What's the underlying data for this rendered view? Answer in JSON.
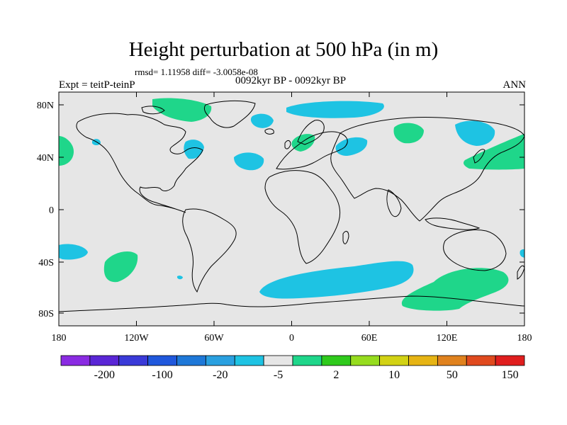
{
  "title": "Height perturbation at 500 hPa (in m)",
  "stats": "rmsd= 1.11958 diff= -3.0058e-08",
  "subtitle": "0092kyr BP - 0092kyr BP",
  "left_label": "Expt = teitP-teinP",
  "right_label": "ANN",
  "lat_ticks": [
    "80N",
    "40N",
    "0",
    "40S",
    "80S"
  ],
  "lon_ticks": [
    "180",
    "120W",
    "60W",
    "0",
    "60E",
    "120E",
    "180"
  ],
  "colorbar": {
    "labels": [
      "-200",
      "-100",
      "-20",
      "-5",
      "2",
      "10",
      "50",
      "150"
    ],
    "colors": [
      "#8a2be2",
      "#5a26d6",
      "#3a3ad8",
      "#2058dc",
      "#1e78d8",
      "#2aa0e0",
      "#1ec3e3",
      "#e6e6e6",
      "#1fd68a",
      "#2fca1c",
      "#96dc1e",
      "#d2d214",
      "#e6b414",
      "#e0821e",
      "#e04a1e",
      "#e01e1e"
    ]
  },
  "map": {
    "background": "#e6e6e6",
    "anomalies": [
      {
        "label": "greenland",
        "color": "#1fd68a"
      },
      {
        "label": "north-atlantic-negative",
        "color": "#1ec3e3"
      },
      {
        "label": "europe-positive",
        "color": "#1fd68a"
      },
      {
        "label": "siberia-positive",
        "color": "#1fd68a"
      },
      {
        "label": "southern-ocean-negative",
        "color": "#1ec3e3"
      },
      {
        "label": "southern-pacific-positive",
        "color": "#1fd68a"
      }
    ]
  }
}
